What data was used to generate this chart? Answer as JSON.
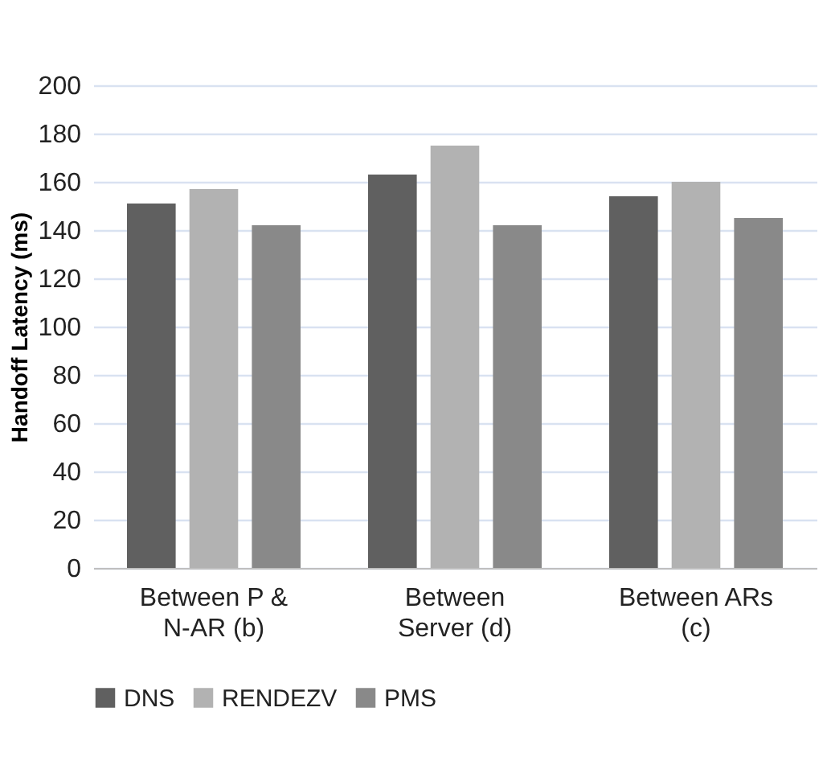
{
  "chart_data": {
    "type": "bar",
    "ylabel": "Handoff Latency (ms)",
    "categories": [
      "Between P & N-AR (b)",
      "Between Server (d)",
      "Between ARs (c)"
    ],
    "series": [
      {
        "name": "DNS",
        "color": "#606060",
        "values": [
          151,
          163,
          154
        ]
      },
      {
        "name": "RENDEZV",
        "color": "#b2b2b2",
        "values": [
          157,
          175,
          160
        ]
      },
      {
        "name": "PMS",
        "color": "#898989",
        "values": [
          142,
          142,
          145
        ]
      }
    ],
    "ylim": [
      0,
      200
    ],
    "yticks": [
      0,
      20,
      40,
      60,
      80,
      100,
      120,
      140,
      160,
      180,
      200
    ],
    "grid": "y",
    "legend": "bottom"
  }
}
